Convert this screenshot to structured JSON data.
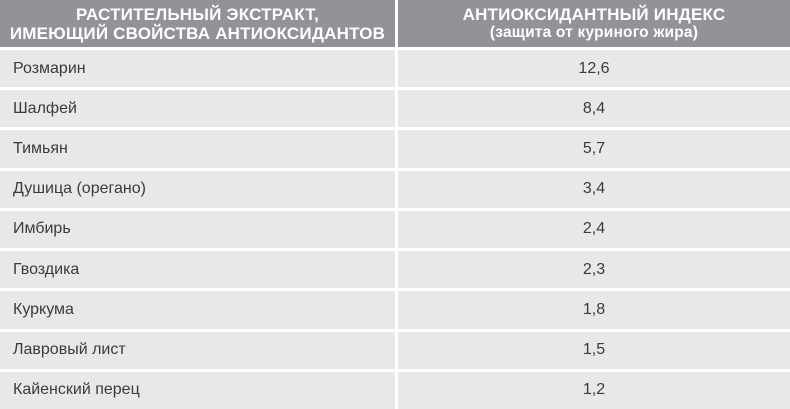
{
  "table": {
    "header": {
      "extract_line1": "РАСТИТЕЛЬНЫЙ ЭКСТРАКТ,",
      "extract_line2": "ИМЕЮЩИЙ СВОЙСТВА АНТИОКСИДАНТОВ",
      "index_line1": "АНТИОКСИДАНТНЫЙ ИНДЕКС",
      "index_line2": "(защита от куриного жира)"
    },
    "rows": [
      {
        "label": "Розмарин",
        "value": "12,6"
      },
      {
        "label": "Шалфей",
        "value": "8,4"
      },
      {
        "label": "Тимьян",
        "value": "5,7"
      },
      {
        "label": "Душица (орегано)",
        "value": "3,4"
      },
      {
        "label": "Имбирь",
        "value": "2,4"
      },
      {
        "label": "Гвоздика",
        "value": "2,3"
      },
      {
        "label": "Куркума",
        "value": "1,8"
      },
      {
        "label": "Лавровый лист",
        "value": "1,5"
      },
      {
        "label": "Кайенский перец",
        "value": "1,2"
      }
    ],
    "colors": {
      "header_background": "#919396",
      "row_background": "#e8e8e9",
      "separator": "#ffffff",
      "header_text": "#ffffff",
      "row_text": "#3b3b3d"
    }
  },
  "chart_data": {
    "type": "table",
    "title": "",
    "columns": [
      "РАСТИТЕЛЬНЫЙ ЭКСТРАКТ, ИМЕЮЩИЙ СВОЙСТВА АНТИОКСИДАНТОВ",
      "АНТИОКСИДАНТНЫЙ ИНДЕКС (защита от куриного жира)"
    ],
    "categories": [
      "Розмарин",
      "Шалфей",
      "Тимьян",
      "Душица (орегано)",
      "Имбирь",
      "Гвоздика",
      "Куркума",
      "Лавровый лист",
      "Кайенский перец"
    ],
    "values": [
      12.6,
      8.4,
      5.7,
      3.4,
      2.4,
      2.3,
      1.8,
      1.5,
      1.2
    ]
  }
}
